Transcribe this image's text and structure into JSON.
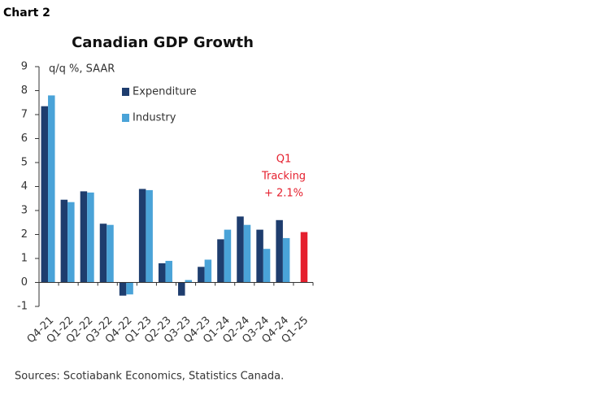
{
  "header": "Chart 2",
  "chart_data": {
    "type": "bar",
    "title": "Canadian GDP Growth",
    "y_label": "q/q %, SAAR",
    "categories": [
      "Q4-21",
      "Q1-22",
      "Q2-22",
      "Q3-22",
      "Q4-22",
      "Q1-23",
      "Q2-23",
      "Q3-23",
      "Q4-23",
      "Q1-24",
      "Q2-24",
      "Q3-24",
      "Q4-24",
      "Q1-25"
    ],
    "series": [
      {
        "name": "Expenditure",
        "color": "#1e3d6e",
        "values": [
          7.35,
          3.45,
          3.8,
          2.45,
          -0.55,
          3.9,
          0.8,
          -0.55,
          0.65,
          1.8,
          2.75,
          2.2,
          2.6,
          null
        ]
      },
      {
        "name": "Industry",
        "color": "#4aa3d8",
        "values": [
          7.8,
          3.35,
          3.75,
          2.4,
          -0.5,
          3.85,
          0.9,
          0.1,
          0.95,
          2.2,
          2.4,
          1.4,
          1.85,
          null
        ]
      }
    ],
    "tracking": {
      "color": "#e5202e",
      "values": [
        null,
        null,
        null,
        null,
        null,
        null,
        null,
        null,
        null,
        null,
        null,
        null,
        null,
        2.1
      ]
    },
    "annotation": [
      "Q1",
      "Tracking",
      "+ 2.1%"
    ],
    "ylim": [
      -1,
      9
    ],
    "yticks": [
      -1,
      0,
      1,
      2,
      3,
      4,
      5,
      6,
      7,
      8,
      9
    ],
    "source": "Sources: Scotiabank Economics, Statistics Canada."
  }
}
